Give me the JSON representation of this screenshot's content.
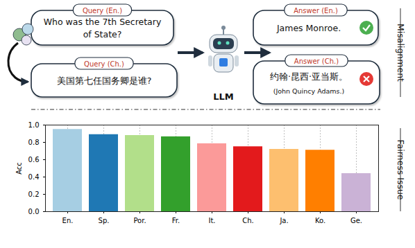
{
  "diagram": {
    "queries": [
      {
        "tag": "Query (En.)",
        "lines": [
          "Who was the 7th Secretary",
          "of State?"
        ]
      },
      {
        "tag": "Query (Ch.)",
        "lines": [
          "美国第七任国务卿是谁?"
        ]
      }
    ],
    "model": "LLM",
    "answers": [
      {
        "tag": "Answer (En.)",
        "lines": [
          "James Monroe."
        ],
        "correct": true
      },
      {
        "tag": "Answer (Ch.)",
        "lines": [
          "约翰·昆西·亚当斯。"
        ],
        "translation": "(John Quincy Adams.)",
        "correct": false
      }
    ],
    "sections": [
      "Misalignment",
      "Fairness Issue"
    ]
  },
  "chart_data": {
    "type": "bar",
    "y_label": "Acc",
    "categories": [
      "En.",
      "Sp.",
      "Por.",
      "Fr.",
      "It.",
      "Ch.",
      "Ja.",
      "Ko.",
      "Ge."
    ],
    "values": [
      0.95,
      0.89,
      0.88,
      0.865,
      0.785,
      0.75,
      0.72,
      0.71,
      0.44
    ],
    "colors": [
      "#a6cee3",
      "#1f78b4",
      "#b2df8a",
      "#33a02c",
      "#fb9a99",
      "#e31a1c",
      "#fdbf6f",
      "#ff7f00",
      "#cab2d6"
    ],
    "ylim": [
      0,
      1
    ],
    "yticks": [
      {
        "value": 0,
        "label": "0.0"
      },
      0.2,
      0.4,
      0.6,
      0.8,
      {
        "value": 1,
        "label": "1.0"
      }
    ],
    "grid": true
  }
}
